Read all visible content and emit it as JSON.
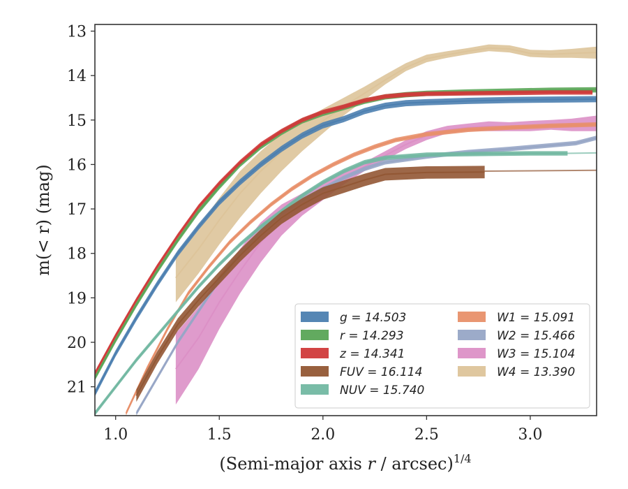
{
  "chart_data": {
    "type": "area",
    "xlabel_main": "(Semi-major axis ",
    "xlabel_var": "r",
    "xlabel_unit": " / arcsec)",
    "xlabel_sup": "1/4",
    "ylabel_main": "m(< r) (mag)",
    "xlim": [
      0.9,
      3.32
    ],
    "ylim": [
      21.65,
      12.85
    ],
    "y_inverted": true,
    "x_ticks": [
      1.0,
      1.5,
      2.0,
      2.5,
      3.0
    ],
    "x_tick_labels": [
      "1.0",
      "1.5",
      "2.0",
      "2.5",
      "3.0"
    ],
    "y_ticks": [
      13,
      14,
      15,
      16,
      17,
      18,
      19,
      20,
      21
    ],
    "y_tick_labels": [
      "13",
      "14",
      "15",
      "16",
      "17",
      "18",
      "19",
      "20",
      "21"
    ],
    "grid": false,
    "legend_position": "lower-right",
    "legend_columns": 2,
    "series": [
      {
        "name": "g",
        "label": "g = 14.503",
        "color": "#4c7fb0",
        "points": [
          [
            0.9,
            21.15
          ],
          [
            1.0,
            20.25
          ],
          [
            1.1,
            19.45
          ],
          [
            1.2,
            18.7
          ],
          [
            1.3,
            18.0
          ],
          [
            1.4,
            17.4
          ],
          [
            1.5,
            16.85
          ],
          [
            1.6,
            16.4
          ],
          [
            1.7,
            16.0
          ],
          [
            1.8,
            15.65
          ],
          [
            1.9,
            15.35
          ],
          [
            2.0,
            15.12
          ],
          [
            2.1,
            14.98
          ],
          [
            2.2,
            14.8
          ],
          [
            2.3,
            14.68
          ],
          [
            2.4,
            14.62
          ],
          [
            2.5,
            14.6
          ],
          [
            2.7,
            14.57
          ],
          [
            2.9,
            14.55
          ],
          [
            3.1,
            14.54
          ],
          [
            3.32,
            14.53
          ]
        ],
        "band": [
          0.07,
          0.07
        ]
      },
      {
        "name": "r",
        "label": "r = 14.293",
        "color": "#5aa556",
        "points": [
          [
            0.9,
            20.8
          ],
          [
            1.0,
            19.95
          ],
          [
            1.1,
            19.15
          ],
          [
            1.2,
            18.4
          ],
          [
            1.3,
            17.7
          ],
          [
            1.4,
            17.05
          ],
          [
            1.5,
            16.5
          ],
          [
            1.6,
            16.0
          ],
          [
            1.7,
            15.6
          ],
          [
            1.8,
            15.28
          ],
          [
            1.9,
            15.02
          ],
          [
            2.0,
            14.85
          ],
          [
            2.1,
            14.72
          ],
          [
            2.2,
            14.58
          ],
          [
            2.3,
            14.48
          ],
          [
            2.4,
            14.43
          ],
          [
            2.5,
            14.4
          ],
          [
            2.7,
            14.37
          ],
          [
            2.9,
            14.35
          ],
          [
            3.1,
            14.33
          ],
          [
            3.32,
            14.32
          ]
        ],
        "band": [
          0.06,
          0.06
        ]
      },
      {
        "name": "z",
        "label": "z = 14.341",
        "color": "#d03a3a",
        "points": [
          [
            0.9,
            20.7
          ],
          [
            1.0,
            19.85
          ],
          [
            1.1,
            19.05
          ],
          [
            1.2,
            18.3
          ],
          [
            1.3,
            17.6
          ],
          [
            1.4,
            16.95
          ],
          [
            1.5,
            16.42
          ],
          [
            1.6,
            15.95
          ],
          [
            1.7,
            15.55
          ],
          [
            1.8,
            15.25
          ],
          [
            1.9,
            15.0
          ],
          [
            2.0,
            14.82
          ],
          [
            2.1,
            14.7
          ],
          [
            2.2,
            14.56
          ],
          [
            2.3,
            14.47
          ],
          [
            2.4,
            14.43
          ],
          [
            2.5,
            14.41
          ],
          [
            2.7,
            14.4
          ],
          [
            2.9,
            14.39
          ],
          [
            3.1,
            14.38
          ],
          [
            3.3,
            14.38
          ]
        ],
        "band": [
          0.05,
          0.05
        ]
      },
      {
        "name": "FUV",
        "label": "FUV = 16.114",
        "color": "#925734",
        "points": [
          [
            1.1,
            21.2
          ],
          [
            1.2,
            20.35
          ],
          [
            1.3,
            19.6
          ],
          [
            1.4,
            19.05
          ],
          [
            1.5,
            18.55
          ],
          [
            1.6,
            18.05
          ],
          [
            1.7,
            17.6
          ],
          [
            1.8,
            17.2
          ],
          [
            1.9,
            16.9
          ],
          [
            2.0,
            16.65
          ],
          [
            2.1,
            16.5
          ],
          [
            2.2,
            16.35
          ],
          [
            2.3,
            16.22
          ],
          [
            2.5,
            16.18
          ],
          [
            2.78,
            16.17
          ]
        ],
        "band": [
          0.14,
          0.14
        ],
        "tail": [
          [
            2.78,
            16.15
          ],
          [
            3.32,
            16.13
          ]
        ]
      },
      {
        "name": "NUV",
        "label": "NUV = 15.740",
        "color": "#72b8a2",
        "points": [
          [
            0.9,
            21.6
          ],
          [
            1.0,
            21.0
          ],
          [
            1.1,
            20.4
          ],
          [
            1.2,
            19.85
          ],
          [
            1.3,
            19.3
          ],
          [
            1.4,
            18.75
          ],
          [
            1.5,
            18.25
          ],
          [
            1.6,
            17.8
          ],
          [
            1.7,
            17.4
          ],
          [
            1.8,
            17.05
          ],
          [
            1.9,
            16.7
          ],
          [
            2.0,
            16.4
          ],
          [
            2.1,
            16.15
          ],
          [
            2.2,
            15.95
          ],
          [
            2.3,
            15.85
          ],
          [
            2.5,
            15.78
          ],
          [
            2.8,
            15.76
          ],
          [
            3.0,
            15.75
          ],
          [
            3.18,
            15.75
          ]
        ],
        "band": [
          0.05,
          0.05
        ],
        "tail": [
          [
            3.18,
            15.75
          ],
          [
            3.32,
            15.74
          ]
        ]
      },
      {
        "name": "W1",
        "label": "W1 = 15.091",
        "color": "#e8906a",
        "points": [
          [
            1.05,
            21.6
          ],
          [
            1.15,
            20.6
          ],
          [
            1.25,
            19.7
          ],
          [
            1.35,
            18.9
          ],
          [
            1.45,
            18.3
          ],
          [
            1.55,
            17.75
          ],
          [
            1.65,
            17.3
          ],
          [
            1.75,
            16.9
          ],
          [
            1.85,
            16.55
          ],
          [
            1.95,
            16.25
          ],
          [
            2.05,
            16.0
          ],
          [
            2.15,
            15.78
          ],
          [
            2.25,
            15.6
          ],
          [
            2.35,
            15.45
          ],
          [
            2.5,
            15.32
          ],
          [
            2.7,
            15.22
          ],
          [
            2.9,
            15.17
          ],
          [
            3.1,
            15.13
          ],
          [
            3.32,
            15.1
          ]
        ],
        "band": [
          0.05,
          0.05
        ]
      },
      {
        "name": "W2",
        "label": "W2 = 15.466",
        "color": "#97a6c6",
        "points": [
          [
            1.1,
            21.6
          ],
          [
            1.2,
            20.8
          ],
          [
            1.3,
            20.0
          ],
          [
            1.4,
            19.3
          ],
          [
            1.5,
            18.6
          ],
          [
            1.6,
            18.0
          ],
          [
            1.7,
            17.5
          ],
          [
            1.8,
            17.1
          ],
          [
            1.9,
            16.8
          ],
          [
            2.0,
            16.55
          ],
          [
            2.1,
            16.3
          ],
          [
            2.2,
            16.1
          ],
          [
            2.3,
            15.95
          ],
          [
            2.5,
            15.82
          ],
          [
            2.7,
            15.72
          ],
          [
            2.9,
            15.65
          ],
          [
            3.1,
            15.57
          ],
          [
            3.22,
            15.52
          ],
          [
            3.32,
            15.4
          ]
        ],
        "band": [
          0.05,
          0.05
        ]
      },
      {
        "name": "W3",
        "label": "W3 = 15.104",
        "color": "#dc90c6",
        "points": [
          [
            1.29,
            20.6
          ],
          [
            1.4,
            19.9
          ],
          [
            1.5,
            19.1
          ],
          [
            1.6,
            18.4
          ],
          [
            1.7,
            17.75
          ],
          [
            1.8,
            17.25
          ],
          [
            1.9,
            16.9
          ],
          [
            2.0,
            16.6
          ],
          [
            2.1,
            16.3
          ],
          [
            2.2,
            16.05
          ],
          [
            2.3,
            15.8
          ],
          [
            2.4,
            15.55
          ],
          [
            2.5,
            15.35
          ],
          [
            2.6,
            15.22
          ],
          [
            2.7,
            15.17
          ],
          [
            2.8,
            15.14
          ],
          [
            2.9,
            15.15
          ],
          [
            3.0,
            15.13
          ],
          [
            3.1,
            15.12
          ],
          [
            3.2,
            15.1
          ],
          [
            3.32,
            15.08
          ]
        ],
        "band_lower": [
          [
            1.29,
            21.4
          ],
          [
            1.4,
            20.6
          ],
          [
            1.5,
            19.7
          ],
          [
            1.6,
            18.9
          ],
          [
            1.7,
            18.2
          ],
          [
            1.8,
            17.6
          ],
          [
            1.9,
            17.15
          ],
          [
            2.0,
            16.8
          ],
          [
            2.1,
            16.45
          ],
          [
            2.2,
            16.15
          ],
          [
            2.3,
            15.9
          ],
          [
            2.4,
            15.65
          ],
          [
            2.5,
            15.45
          ],
          [
            2.6,
            15.3
          ],
          [
            2.7,
            15.25
          ],
          [
            2.8,
            15.25
          ],
          [
            2.9,
            15.25
          ],
          [
            3.0,
            15.25
          ],
          [
            3.1,
            15.22
          ],
          [
            3.2,
            15.25
          ],
          [
            3.32,
            15.25
          ]
        ],
        "band_upper": [
          [
            1.29,
            19.8
          ],
          [
            1.4,
            19.2
          ],
          [
            1.5,
            18.5
          ],
          [
            1.6,
            17.9
          ],
          [
            1.7,
            17.3
          ],
          [
            1.8,
            16.9
          ],
          [
            1.9,
            16.65
          ],
          [
            2.0,
            16.4
          ],
          [
            2.1,
            16.15
          ],
          [
            2.2,
            15.95
          ],
          [
            2.3,
            15.7
          ],
          [
            2.4,
            15.45
          ],
          [
            2.5,
            15.25
          ],
          [
            2.6,
            15.13
          ],
          [
            2.7,
            15.08
          ],
          [
            2.8,
            15.03
          ],
          [
            2.9,
            15.05
          ],
          [
            3.0,
            15.02
          ],
          [
            3.1,
            15.0
          ],
          [
            3.2,
            14.97
          ],
          [
            3.32,
            14.9
          ]
        ]
      },
      {
        "name": "W4",
        "label": "W4 = 13.390",
        "color": "#ddc49a",
        "points": [
          [
            1.29,
            18.55
          ],
          [
            1.4,
            17.9
          ],
          [
            1.5,
            17.25
          ],
          [
            1.6,
            16.65
          ],
          [
            1.7,
            16.15
          ],
          [
            1.8,
            15.72
          ],
          [
            1.9,
            15.35
          ],
          [
            2.0,
            15.02
          ],
          [
            2.1,
            14.7
          ],
          [
            2.2,
            14.4
          ],
          [
            2.3,
            14.1
          ],
          [
            2.4,
            13.82
          ],
          [
            2.5,
            13.62
          ],
          [
            2.6,
            13.53
          ],
          [
            2.7,
            13.45
          ],
          [
            2.8,
            13.38
          ],
          [
            2.9,
            13.4
          ],
          [
            3.0,
            13.5
          ],
          [
            3.1,
            13.52
          ],
          [
            3.2,
            13.5
          ],
          [
            3.32,
            13.48
          ]
        ],
        "band_lower": [
          [
            1.29,
            19.1
          ],
          [
            1.4,
            18.45
          ],
          [
            1.5,
            17.8
          ],
          [
            1.6,
            17.2
          ],
          [
            1.7,
            16.65
          ],
          [
            1.8,
            16.15
          ],
          [
            1.9,
            15.7
          ],
          [
            2.0,
            15.3
          ],
          [
            2.1,
            14.9
          ],
          [
            2.2,
            14.55
          ],
          [
            2.3,
            14.2
          ],
          [
            2.4,
            13.9
          ],
          [
            2.5,
            13.7
          ],
          [
            2.6,
            13.6
          ],
          [
            2.7,
            13.52
          ],
          [
            2.8,
            13.45
          ],
          [
            2.9,
            13.48
          ],
          [
            3.0,
            13.58
          ],
          [
            3.1,
            13.6
          ],
          [
            3.2,
            13.6
          ],
          [
            3.32,
            13.62
          ]
        ],
        "band_upper": [
          [
            1.29,
            18.0
          ],
          [
            1.4,
            17.4
          ],
          [
            1.5,
            16.75
          ],
          [
            1.6,
            16.15
          ],
          [
            1.7,
            15.7
          ],
          [
            1.8,
            15.3
          ],
          [
            1.9,
            15.0
          ],
          [
            2.0,
            14.75
          ],
          [
            2.1,
            14.5
          ],
          [
            2.2,
            14.25
          ],
          [
            2.3,
            13.98
          ],
          [
            2.4,
            13.72
          ],
          [
            2.5,
            13.53
          ],
          [
            2.6,
            13.45
          ],
          [
            2.7,
            13.38
          ],
          [
            2.8,
            13.3
          ],
          [
            2.9,
            13.32
          ],
          [
            3.0,
            13.42
          ],
          [
            3.1,
            13.43
          ],
          [
            3.2,
            13.4
          ],
          [
            3.32,
            13.35
          ]
        ]
      }
    ]
  }
}
